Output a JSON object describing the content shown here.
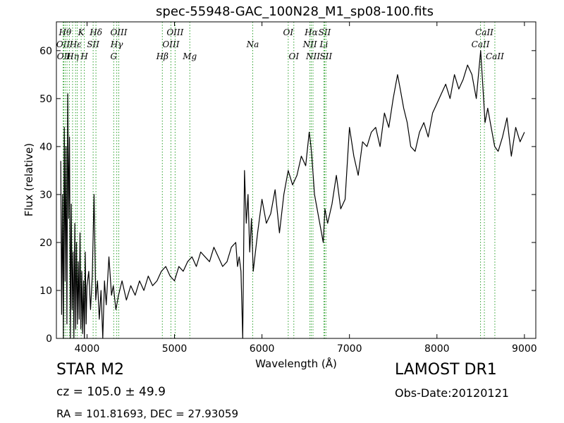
{
  "chart_data": {
    "type": "line",
    "title": "spec-55948-GAC_100N28_M1_sp08-100.fits",
    "xlabel": "Wavelength (Å)",
    "ylabel": "Flux (relative)",
    "xlim": [
      3650,
      9130
    ],
    "ylim": [
      0,
      66
    ],
    "xticks": [
      4000,
      5000,
      6000,
      7000,
      8000,
      9000
    ],
    "yticks": [
      0,
      10,
      20,
      30,
      40,
      50,
      60
    ],
    "grid": false,
    "line_color": "#000000",
    "marker_color": "#2ca02c",
    "series": [
      {
        "x": [
          3700,
          3710,
          3720,
          3730,
          3740,
          3750,
          3760,
          3770,
          3780,
          3790,
          3800,
          3810,
          3820,
          3830,
          3840,
          3850,
          3860,
          3870,
          3880,
          3890,
          3900,
          3910,
          3920,
          3930,
          3940,
          3950,
          3960,
          3970,
          3980,
          3990,
          4000,
          4020,
          4040,
          4060,
          4080,
          4100,
          4120,
          4140,
          4160,
          4180,
          4200,
          4220,
          4250,
          4280,
          4300,
          4330,
          4360,
          4400,
          4450,
          4500,
          4550,
          4600,
          4650,
          4700,
          4750,
          4800,
          4850,
          4900,
          4950,
          5000,
          5050,
          5100,
          5150,
          5200,
          5250,
          5300,
          5350,
          5400,
          5450,
          5500,
          5550,
          5600,
          5650,
          5700,
          5720,
          5740,
          5760,
          5780,
          5800,
          5820,
          5840,
          5860,
          5880,
          5900,
          5950,
          6000,
          6050,
          6100,
          6150,
          6200,
          6250,
          6300,
          6350,
          6400,
          6450,
          6500,
          6540,
          6560,
          6570,
          6600,
          6650,
          6700,
          6720,
          6750,
          6800,
          6850,
          6900,
          6950,
          7000,
          7050,
          7100,
          7150,
          7200,
          7250,
          7300,
          7350,
          7400,
          7450,
          7500,
          7550,
          7580,
          7620,
          7660,
          7700,
          7750,
          7800,
          7850,
          7900,
          7950,
          8000,
          8050,
          8100,
          8150,
          8200,
          8250,
          8300,
          8350,
          8400,
          8450,
          8480,
          8500,
          8520,
          8550,
          8580,
          8620,
          8660,
          8700,
          8750,
          8800,
          8850,
          8900,
          8950,
          9000
        ],
        "y": [
          37,
          5,
          30,
          0,
          44,
          12,
          40,
          3,
          51,
          25,
          42,
          0,
          28,
          6,
          18,
          0,
          24,
          2,
          20,
          3,
          16,
          4,
          22,
          2,
          14,
          1,
          12,
          0,
          18,
          3,
          11,
          14,
          6,
          13,
          30,
          8,
          12,
          4,
          10,
          0,
          12,
          7,
          17,
          9,
          11,
          6,
          9,
          12,
          8,
          11,
          9,
          12,
          10,
          13,
          11,
          12,
          14,
          15,
          13,
          12,
          15,
          14,
          16,
          17,
          15,
          18,
          17,
          16,
          19,
          17,
          15,
          16,
          19,
          20,
          15,
          17,
          14,
          0,
          35,
          24,
          30,
          18,
          25,
          14,
          22,
          29,
          24,
          26,
          31,
          22,
          30,
          35,
          32,
          34,
          38,
          36,
          43,
          40,
          38,
          30,
          25,
          20,
          27,
          24,
          28,
          34,
          27,
          29,
          44,
          38,
          34,
          41,
          40,
          43,
          44,
          40,
          47,
          44,
          50,
          55,
          52,
          48,
          45,
          40,
          39,
          43,
          45,
          42,
          47,
          49,
          51,
          53,
          50,
          55,
          52,
          54,
          57,
          55,
          50,
          56,
          60,
          54,
          45,
          48,
          44,
          40,
          39,
          42,
          46,
          38,
          44,
          41,
          43
        ]
      }
    ],
    "line_markers": [
      {
        "x": 3727,
        "label": "OII",
        "row": 2
      },
      {
        "x": 3734,
        "label": "OII",
        "row": 3
      },
      {
        "x": 3750,
        "label": "Hθ",
        "row": 1
      },
      {
        "x": 3771,
        "label": "",
        "row": 0
      },
      {
        "x": 3798,
        "label": "",
        "row": 0
      },
      {
        "x": 3835,
        "label": "Hη",
        "row": 3
      },
      {
        "x": 3869,
        "label": "Hε",
        "row": 2
      },
      {
        "x": 3889,
        "label": "",
        "row": 0
      },
      {
        "x": 3933,
        "label": "K",
        "row": 1
      },
      {
        "x": 3969,
        "label": "H",
        "row": 3
      },
      {
        "x": 4070,
        "label": "SII",
        "row": 2
      },
      {
        "x": 4102,
        "label": "Hδ",
        "row": 1
      },
      {
        "x": 4305,
        "label": "G",
        "row": 3
      },
      {
        "x": 4340,
        "label": "Hγ",
        "row": 2
      },
      {
        "x": 4363,
        "label": "OIII",
        "row": 1
      },
      {
        "x": 4861,
        "label": "Hβ",
        "row": 3
      },
      {
        "x": 4959,
        "label": "OIII",
        "row": 2
      },
      {
        "x": 5007,
        "label": "OIII",
        "row": 1
      },
      {
        "x": 5175,
        "label": "Mg",
        "row": 3
      },
      {
        "x": 5894,
        "label": "Na",
        "row": 2
      },
      {
        "x": 6300,
        "label": "OI",
        "row": 1
      },
      {
        "x": 6364,
        "label": "OI",
        "row": 3
      },
      {
        "x": 6548,
        "label": "NII",
        "row": 2
      },
      {
        "x": 6563,
        "label": "Hα",
        "row": 1
      },
      {
        "x": 6583,
        "label": "NII",
        "row": 3
      },
      {
        "x": 6708,
        "label": "Li",
        "row": 2
      },
      {
        "x": 6716,
        "label": "SII",
        "row": 1
      },
      {
        "x": 6731,
        "label": "SII",
        "row": 3
      },
      {
        "x": 8498,
        "label": "CaII",
        "row": 2
      },
      {
        "x": 8542,
        "label": "CaII",
        "row": 1
      },
      {
        "x": 8662,
        "label": "CaII",
        "row": 3
      }
    ]
  },
  "info": {
    "object_class": "STAR   M2",
    "cz": "cz = 105.0 ± 49.9",
    "radec": "RA = 101.81693, DEC = 27.93059",
    "survey": "LAMOST DR1",
    "obs_date": "Obs-Date:20120121"
  }
}
